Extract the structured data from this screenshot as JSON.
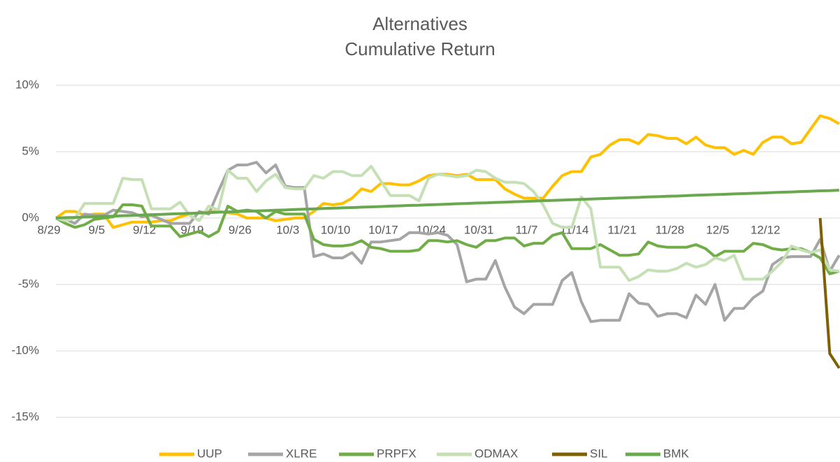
{
  "chart_data": {
    "type": "line",
    "title": "Alternatives",
    "subtitle": "Cumulative Return",
    "categories": [
      "8/29",
      null,
      null,
      null,
      null,
      "9/5",
      null,
      null,
      null,
      null,
      "9/12",
      null,
      null,
      null,
      null,
      "9/19",
      null,
      null,
      null,
      null,
      "9/26",
      null,
      null,
      null,
      null,
      "10/3",
      null,
      null,
      null,
      null,
      "10/10",
      null,
      null,
      null,
      null,
      "10/17",
      null,
      null,
      null,
      null,
      "10/24",
      null,
      null,
      null,
      null,
      "10/31",
      null,
      null,
      null,
      null,
      "11/7",
      null,
      null,
      null,
      null,
      "11/14",
      null,
      null,
      null,
      null,
      "11/21",
      null,
      null,
      null,
      null,
      "11/28",
      null,
      null,
      null,
      null,
      "12/5",
      null,
      null,
      null,
      null,
      "12/12",
      null,
      null,
      null,
      null,
      null,
      null,
      null
    ],
    "ylim": [
      -15,
      10
    ],
    "yticks": [
      {
        "value": -15,
        "label": "-15%"
      },
      {
        "value": -10,
        "label": "-10%"
      },
      {
        "value": -5,
        "label": "-5%"
      },
      {
        "value": 0,
        "label": "0%"
      },
      {
        "value": 5,
        "label": "5%"
      },
      {
        "value": 10,
        "label": "10%"
      }
    ],
    "grid": true,
    "legend": "bottom",
    "series": [
      {
        "name": "UUP",
        "color": "#ffc000",
        "values": [
          0,
          0.5,
          0.5,
          0.2,
          0.3,
          0.3,
          -0.7,
          -0.5,
          -0.3,
          -0.3,
          -0.3,
          -0.2,
          -0.2,
          0.1,
          0.3,
          0.4,
          0.5,
          0.5,
          0.4,
          0.3,
          0,
          0,
          0,
          -0.2,
          -0.1,
          0,
          0,
          0.5,
          1.1,
          1.0,
          1.1,
          1.5,
          2.2,
          2.0,
          2.6,
          2.6,
          2.5,
          2.5,
          2.8,
          3.2,
          3.3,
          3.3,
          3.2,
          3.3,
          2.9,
          2.9,
          2.9,
          2.2,
          1.8,
          1.5,
          1.5,
          1.5,
          2.4,
          3.2,
          3.5,
          3.5,
          4.6,
          4.8,
          5.5,
          5.9,
          5.9,
          5.6,
          6.3,
          6.2,
          6.0,
          6.0,
          5.6,
          6.1,
          5.5,
          5.3,
          5.3,
          4.8,
          5.1,
          4.8,
          5.7,
          6.1,
          6.1,
          5.6,
          5.7,
          6.7,
          7.7,
          7.5,
          7.1
        ]
      },
      {
        "name": "XLRE",
        "color": "#a5a5a5",
        "values": [
          0,
          -0.1,
          -0.4,
          0.3,
          0.2,
          0.2,
          0.6,
          0.5,
          0.4,
          0.1,
          0.2,
          -0.1,
          -0.4,
          -0.4,
          -0.4,
          0.5,
          0.3,
          2.0,
          3.6,
          4.0,
          4.0,
          4.2,
          3.4,
          4.0,
          2.4,
          2.3,
          2.3,
          -2.9,
          -2.7,
          -3.0,
          -3.0,
          -2.6,
          -3.4,
          -1.8,
          -1.8,
          -1.7,
          -1.6,
          -1.1,
          -1.1,
          -1.2,
          -1.1,
          -1.3,
          -2.0,
          -4.8,
          -4.6,
          -4.6,
          -3.2,
          -5.2,
          -6.7,
          -7.2,
          -6.5,
          -6.5,
          -6.5,
          -4.7,
          -4.1,
          -6.3,
          -7.8,
          -7.7,
          -7.7,
          -7.7,
          -5.7,
          -6.4,
          -6.5,
          -7.4,
          -7.2,
          -7.2,
          -7.5,
          -5.8,
          -6.5,
          -5.0,
          -7.7,
          -6.8,
          -6.8,
          -6.0,
          -5.5,
          -3.5,
          -3.0,
          -2.9,
          -2.9,
          -2.9,
          -1.6,
          -4.0,
          -2.8
        ]
      },
      {
        "name": "PRPFX",
        "color": "#70ad47",
        "values": [
          0,
          -0.4,
          -0.7,
          -0.5,
          -0.1,
          0,
          0.1,
          1.0,
          1.0,
          0.9,
          -0.6,
          -0.6,
          -0.6,
          -1.4,
          -1.2,
          -1.0,
          -1.4,
          -1.0,
          0.9,
          0.5,
          0.6,
          0.5,
          0,
          0.5,
          0.3,
          0.3,
          0.3,
          -1.6,
          -2.0,
          -2.1,
          -2.1,
          -2.0,
          -1.7,
          -2.2,
          -2.3,
          -2.5,
          -2.5,
          -2.5,
          -2.4,
          -1.7,
          -1.7,
          -1.8,
          -1.7,
          -2.0,
          -2.2,
          -1.7,
          -1.7,
          -1.5,
          -1.5,
          -2.1,
          -1.9,
          -1.9,
          -1.3,
          -1.1,
          -2.3,
          -2.3,
          -2.3,
          -2.0,
          -2.4,
          -2.8,
          -2.8,
          -2.7,
          -1.8,
          -2.1,
          -2.2,
          -2.2,
          -2.2,
          -2.0,
          -2.3,
          -2.9,
          -2.5,
          -2.5,
          -2.5,
          -1.9,
          -2.0,
          -2.3,
          -2.4,
          -2.3,
          -2.3,
          -2.6,
          -3.0,
          -4.2,
          -4.0
        ]
      },
      {
        "name": "ODMAX",
        "color": "#c5e0b4",
        "values": [
          0,
          -0.2,
          0,
          1.1,
          1.1,
          1.1,
          1.1,
          3.0,
          2.9,
          2.9,
          0.7,
          0.7,
          0.7,
          1.2,
          0.2,
          -0.2,
          0.9,
          0.6,
          3.6,
          3.0,
          3.0,
          2.0,
          2.8,
          3.3,
          2.3,
          2.2,
          2.2,
          3.2,
          3.0,
          3.5,
          3.5,
          3.2,
          3.2,
          3.9,
          2.8,
          1.7,
          1.7,
          1.7,
          1.3,
          3.0,
          3.3,
          3.2,
          3.1,
          3.2,
          3.6,
          3.5,
          3.0,
          2.7,
          2.7,
          2.6,
          2.0,
          1.0,
          -0.4,
          -0.7,
          -0.7,
          1.6,
          0.7,
          -3.7,
          -3.7,
          -3.7,
          -4.7,
          -4.4,
          -3.9,
          -4.0,
          -4.0,
          -3.8,
          -3.4,
          -3.7,
          -3.5,
          -3.0,
          -3.2,
          -2.8,
          -4.6,
          -4.6,
          -4.6,
          -4.0,
          -3.3,
          -2.1,
          -2.4,
          -2.6,
          -2.4,
          -3.9,
          -4.0
        ]
      },
      {
        "name": "SIL",
        "color": "#7f6000",
        "values": [
          null,
          null,
          null,
          null,
          null,
          null,
          null,
          null,
          null,
          null,
          null,
          null,
          null,
          null,
          null,
          null,
          null,
          null,
          null,
          null,
          null,
          null,
          null,
          null,
          null,
          null,
          null,
          null,
          null,
          null,
          null,
          null,
          null,
          null,
          null,
          null,
          null,
          null,
          null,
          null,
          null,
          null,
          null,
          null,
          null,
          null,
          null,
          null,
          null,
          null,
          null,
          null,
          null,
          null,
          null,
          null,
          null,
          null,
          null,
          null,
          null,
          null,
          null,
          null,
          null,
          null,
          null,
          null,
          null,
          null,
          null,
          null,
          null,
          null,
          null,
          null,
          null,
          null,
          null,
          null,
          0,
          -10.2,
          -11.3
        ]
      },
      {
        "name": "BMK",
        "color": "#6aa84f",
        "values": [
          0,
          0.03,
          0.05,
          0.08,
          0.1,
          0.13,
          0.15,
          0.18,
          0.2,
          0.23,
          0.26,
          0.28,
          0.31,
          0.33,
          0.36,
          0.38,
          0.41,
          0.44,
          0.46,
          0.49,
          0.51,
          0.54,
          0.56,
          0.59,
          0.61,
          0.64,
          0.67,
          0.69,
          0.72,
          0.74,
          0.77,
          0.79,
          0.82,
          0.84,
          0.87,
          0.9,
          0.92,
          0.95,
          0.97,
          1.0,
          1.02,
          1.05,
          1.08,
          1.1,
          1.13,
          1.15,
          1.18,
          1.2,
          1.23,
          1.25,
          1.28,
          1.31,
          1.33,
          1.36,
          1.38,
          1.41,
          1.43,
          1.46,
          1.49,
          1.51,
          1.54,
          1.56,
          1.59,
          1.61,
          1.64,
          1.66,
          1.69,
          1.72,
          1.74,
          1.77,
          1.79,
          1.82,
          1.84,
          1.87,
          1.89,
          1.92,
          1.95,
          1.97,
          2.0,
          2.02,
          2.05,
          2.07,
          2.1
        ]
      }
    ]
  }
}
